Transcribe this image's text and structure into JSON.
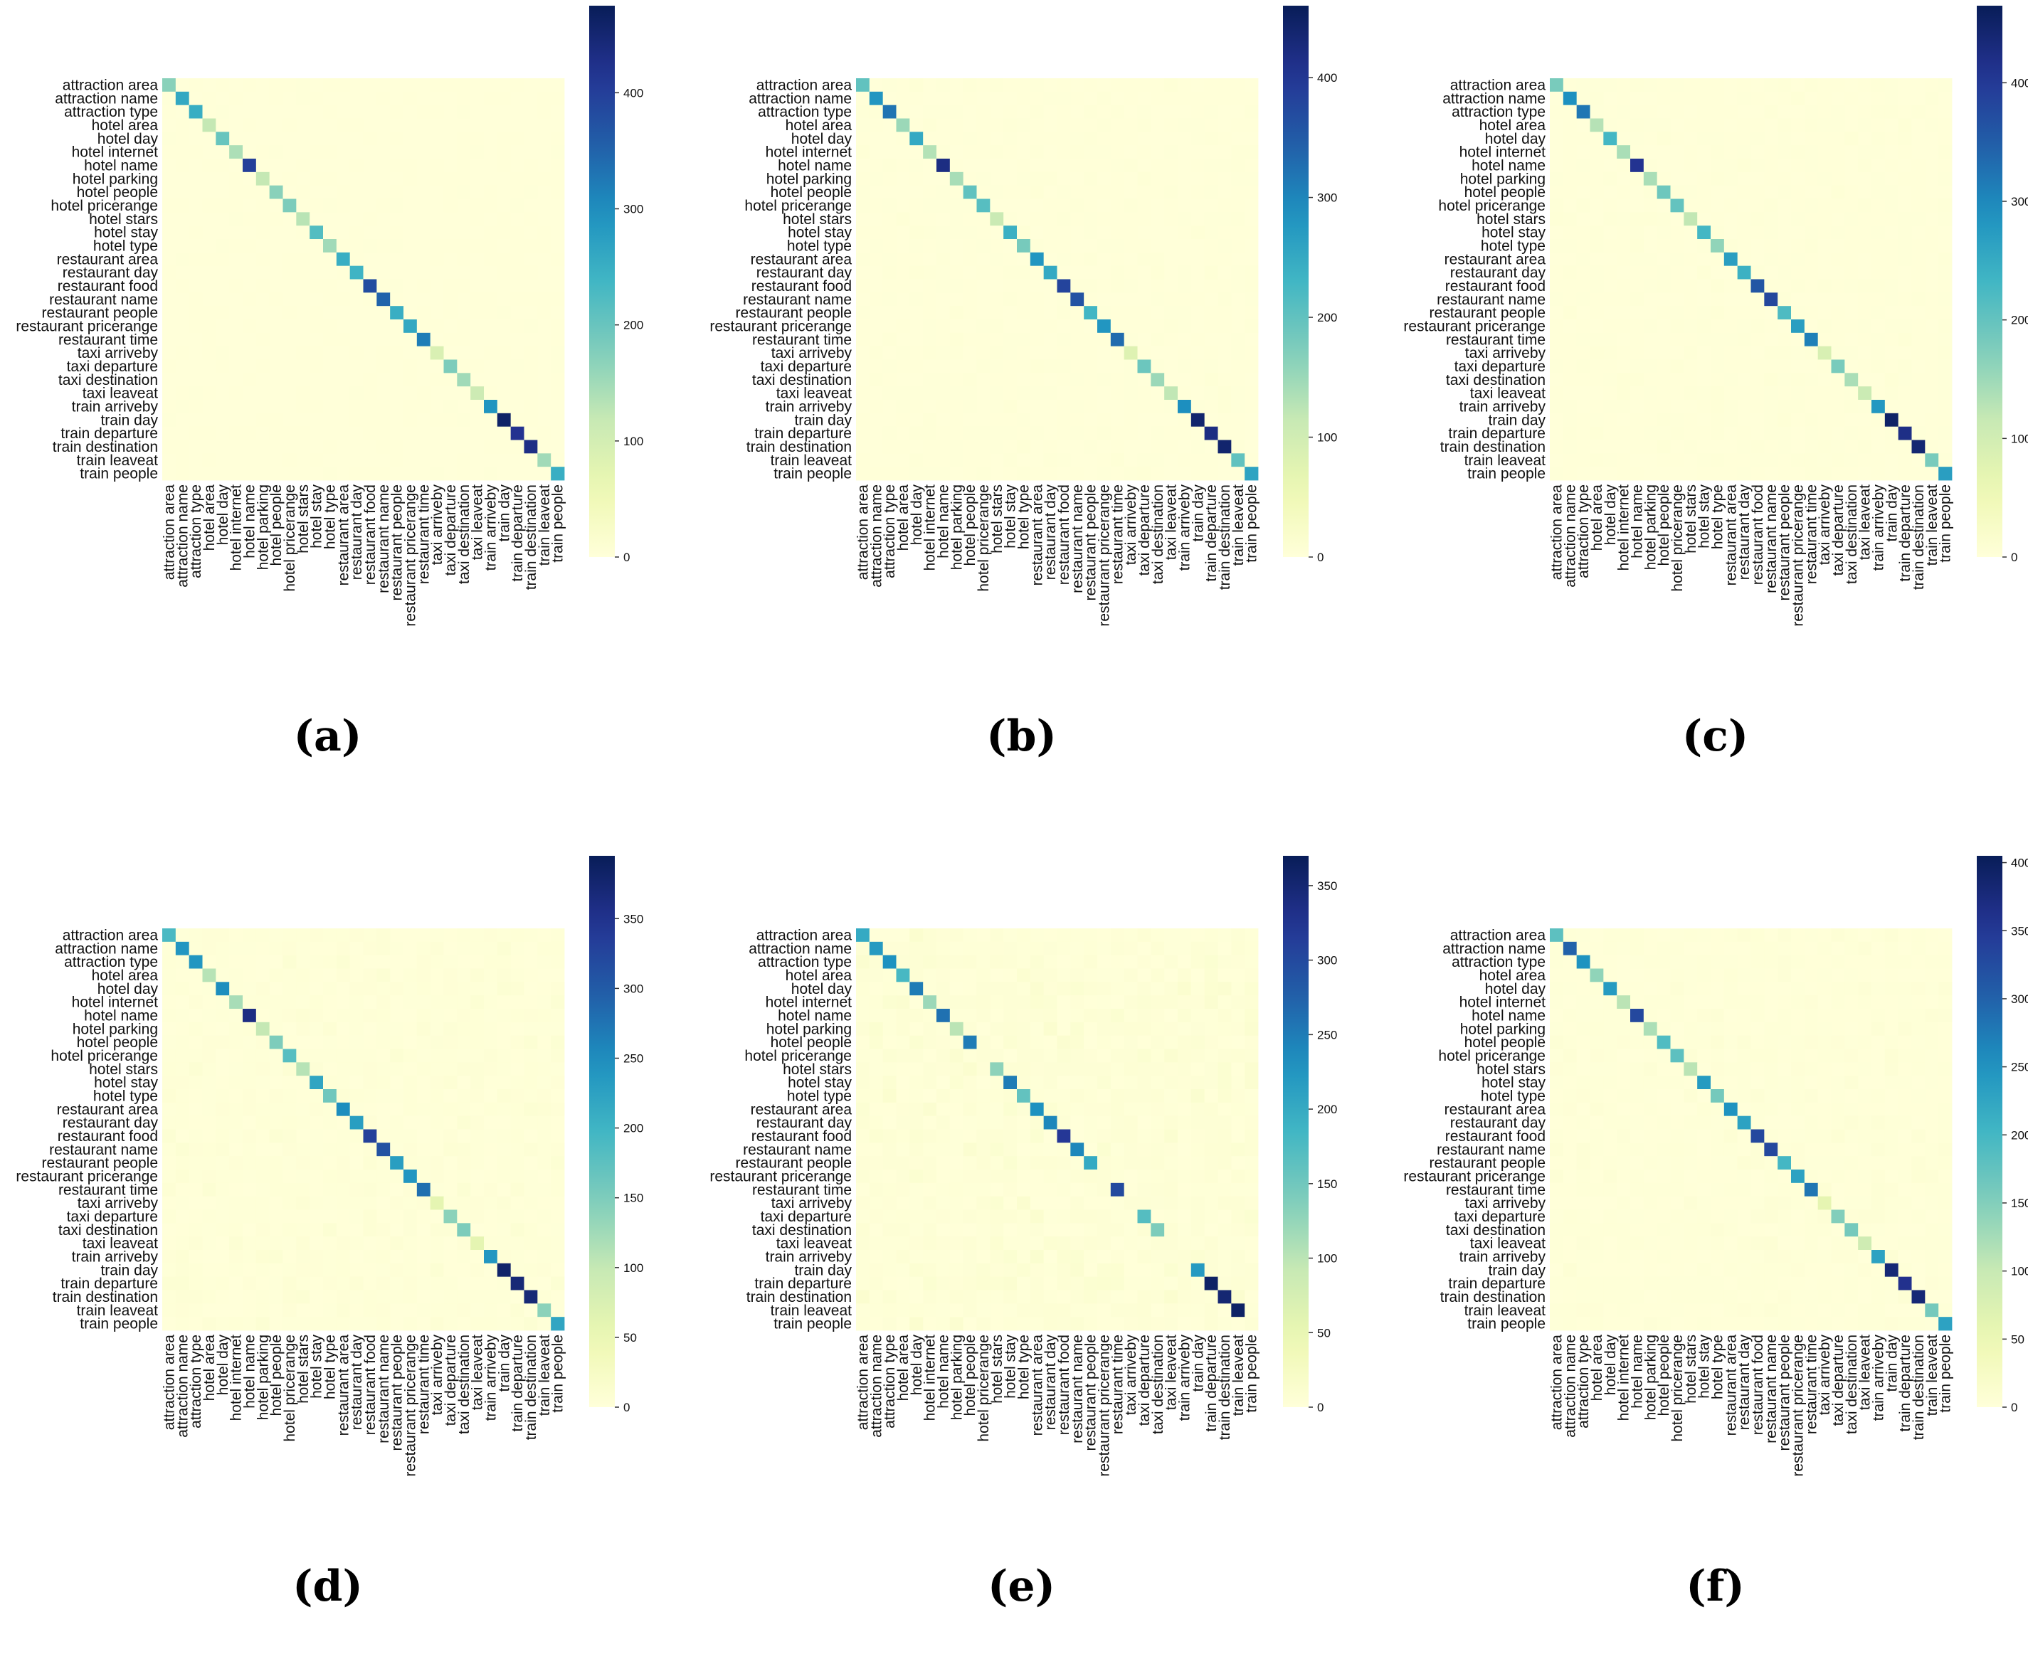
{
  "chart_data": [
    {
      "type": "heatmap",
      "panel_label": "(a)",
      "colorbar": {
        "max": 475,
        "ticks": [
          0,
          100,
          200,
          300,
          400
        ]
      },
      "diagonal": [
        170,
        260,
        250,
        120,
        200,
        140,
        400,
        120,
        170,
        180,
        130,
        220,
        150,
        250,
        240,
        380,
        350,
        250,
        260,
        320,
        90,
        180,
        150,
        110,
        290,
        460,
        420,
        430,
        150,
        250
      ],
      "off_diagonal": 1
    },
    {
      "type": "heatmap",
      "panel_label": "(b)",
      "colorbar": {
        "max": 460,
        "ticks": [
          0,
          100,
          200,
          300,
          400
        ]
      },
      "diagonal": [
        200,
        280,
        320,
        150,
        250,
        130,
        420,
        140,
        200,
        210,
        110,
        240,
        180,
        280,
        250,
        380,
        360,
        230,
        280,
        330,
        80,
        190,
        150,
        120,
        290,
        440,
        420,
        440,
        200,
        260
      ],
      "off_diagonal": 2
    },
    {
      "type": "heatmap",
      "panel_label": "(c)",
      "colorbar": {
        "max": 465,
        "ticks": [
          0,
          100,
          200,
          300,
          400
        ]
      },
      "diagonal": [
        180,
        290,
        320,
        130,
        230,
        140,
        410,
        140,
        190,
        200,
        120,
        230,
        160,
        270,
        240,
        360,
        380,
        220,
        270,
        310,
        90,
        180,
        140,
        110,
        280,
        450,
        420,
        440,
        180,
        270
      ],
      "off_diagonal": 2
    },
    {
      "type": "heatmap",
      "panel_label": "(d)",
      "colorbar": {
        "max": 395,
        "ticks": [
          0,
          50,
          100,
          150,
          200,
          250,
          300,
          350
        ]
      },
      "diagonal": [
        190,
        240,
        240,
        110,
        250,
        120,
        360,
        100,
        150,
        180,
        110,
        220,
        160,
        250,
        230,
        330,
        310,
        230,
        240,
        280,
        60,
        140,
        150,
        60,
        240,
        380,
        370,
        370,
        140,
        220
      ],
      "off_diagonal": 4
    },
    {
      "type": "heatmap",
      "panel_label": "(e)",
      "colorbar": {
        "max": 370,
        "ticks": [
          0,
          50,
          100,
          150,
          200,
          250,
          300,
          350
        ]
      },
      "diagonal": [
        200,
        220,
        230,
        180,
        250,
        120,
        260,
        100,
        250,
        5,
        130,
        250,
        160,
        230,
        240,
        320,
        240,
        200,
        5,
        300,
        5,
        170,
        140,
        5,
        5,
        220,
        360,
        350,
        360,
        5
      ],
      "off_diagonal": 6
    },
    {
      "type": "heatmap",
      "panel_label": "(f)",
      "colorbar": {
        "max": 405,
        "ticks": [
          0,
          50,
          100,
          150,
          200,
          250,
          300,
          350,
          400
        ]
      },
      "diagonal": [
        180,
        300,
        250,
        140,
        240,
        110,
        330,
        120,
        190,
        180,
        110,
        240,
        160,
        250,
        230,
        330,
        330,
        200,
        230,
        280,
        60,
        150,
        160,
        90,
        230,
        380,
        360,
        380,
        160,
        230
      ],
      "off_diagonal": 3
    }
  ],
  "slot_labels": [
    "attraction area",
    "attraction name",
    "attraction type",
    "hotel area",
    "hotel day",
    "hotel internet",
    "hotel name",
    "hotel parking",
    "hotel people",
    "hotel pricerange",
    "hotel stars",
    "hotel stay",
    "hotel type",
    "restaurant area",
    "restaurant day",
    "restaurant food",
    "restaurant name",
    "restaurant people",
    "restaurant pricerange",
    "restaurant time",
    "taxi arriveby",
    "taxi departure",
    "taxi destination",
    "taxi leaveat",
    "train arriveby",
    "train day",
    "train departure",
    "train destination",
    "train leaveat",
    "train people"
  ]
}
